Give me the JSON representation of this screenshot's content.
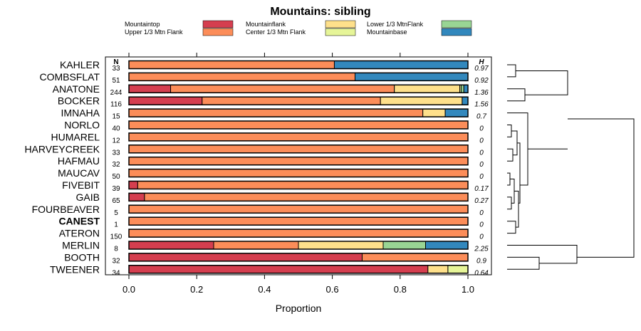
{
  "chart_data": {
    "type": "bar",
    "orientation": "horizontal",
    "stacked": true,
    "title": "Mountains: sibling",
    "xlabel": "Proportion",
    "ylabel": "",
    "xlim": [
      0,
      1
    ],
    "xticks": [
      "0.0",
      "0.2",
      "0.4",
      "0.6",
      "0.8",
      "1.0"
    ],
    "n_header": "N",
    "h_header": "H",
    "highlighted_category": "CANEST",
    "legend": [
      {
        "name": "Mountaintop",
        "color": "#d53e4f"
      },
      {
        "name": "Upper 1/3 Mtn Flank",
        "color": "#fc8d59"
      },
      {
        "name": "Mountainflank",
        "color": "#fee08b"
      },
      {
        "name": "Center 1/3 Mtn Flank",
        "color": "#e6f598"
      },
      {
        "name": "Lower 1/3 MtnFlank",
        "color": "#99d594"
      },
      {
        "name": "Mountainbase",
        "color": "#3288bd"
      }
    ],
    "categories": [
      "KAHLER",
      "COMBSFLAT",
      "ANATONE",
      "BOCKER",
      "IMNAHA",
      "NORLO",
      "HUMAREL",
      "HARVEYCREEK",
      "HAFMAU",
      "MAUCAV",
      "FIVEBIT",
      "GAIB",
      "FOURBEAVER",
      "CANEST",
      "ATERON",
      "MERLIN",
      "BOOTH",
      "TWEENER"
    ],
    "n": [
      "33",
      "51",
      "244",
      "116",
      "15",
      "40",
      "12",
      "33",
      "32",
      "50",
      "39",
      "65",
      "5",
      "1",
      "150",
      "8",
      "32",
      "34"
    ],
    "h": [
      "0.97",
      "0.92",
      "1.36",
      "1.56",
      "0.7",
      "0",
      "0",
      "0",
      "0",
      "0",
      "0.17",
      "0.27",
      "0",
      "0",
      "0",
      "2.25",
      "0.9",
      "0.64"
    ],
    "series": [
      {
        "name": "Mountaintop",
        "values": [
          0,
          0,
          0.123,
          0.216,
          0,
          0,
          0,
          0,
          0,
          0,
          0.026,
          0.046,
          0,
          0,
          0,
          0.25,
          0.688,
          0.882
        ]
      },
      {
        "name": "Upper 1/3 Mtn Flank",
        "values": [
          0.606,
          0.667,
          0.66,
          0.526,
          0.867,
          1,
          1,
          1,
          1,
          1,
          0.974,
          0.954,
          1,
          1,
          1,
          0.25,
          0.312,
          0
        ]
      },
      {
        "name": "Mountainflank",
        "values": [
          0,
          0,
          0.193,
          0.241,
          0.066,
          0,
          0,
          0,
          0,
          0,
          0,
          0,
          0,
          0,
          0,
          0.25,
          0,
          0.059
        ]
      },
      {
        "name": "Center 1/3 Mtn Flank",
        "values": [
          0,
          0,
          0.004,
          0,
          0,
          0,
          0,
          0,
          0,
          0,
          0,
          0,
          0,
          0,
          0,
          0,
          0,
          0.059
        ]
      },
      {
        "name": "Lower 1/3 MtnFlank",
        "values": [
          0,
          0,
          0.008,
          0,
          0,
          0,
          0,
          0,
          0,
          0,
          0,
          0,
          0,
          0,
          0,
          0.125,
          0,
          0
        ]
      },
      {
        "name": "Mountainbase",
        "values": [
          0.394,
          0.333,
          0.012,
          0.017,
          0.067,
          0,
          0,
          0,
          0,
          0,
          0,
          0,
          0,
          0,
          0,
          0.125,
          0,
          0
        ]
      }
    ],
    "dendrogram": "hierarchical clustering tree of sites shown at right"
  }
}
